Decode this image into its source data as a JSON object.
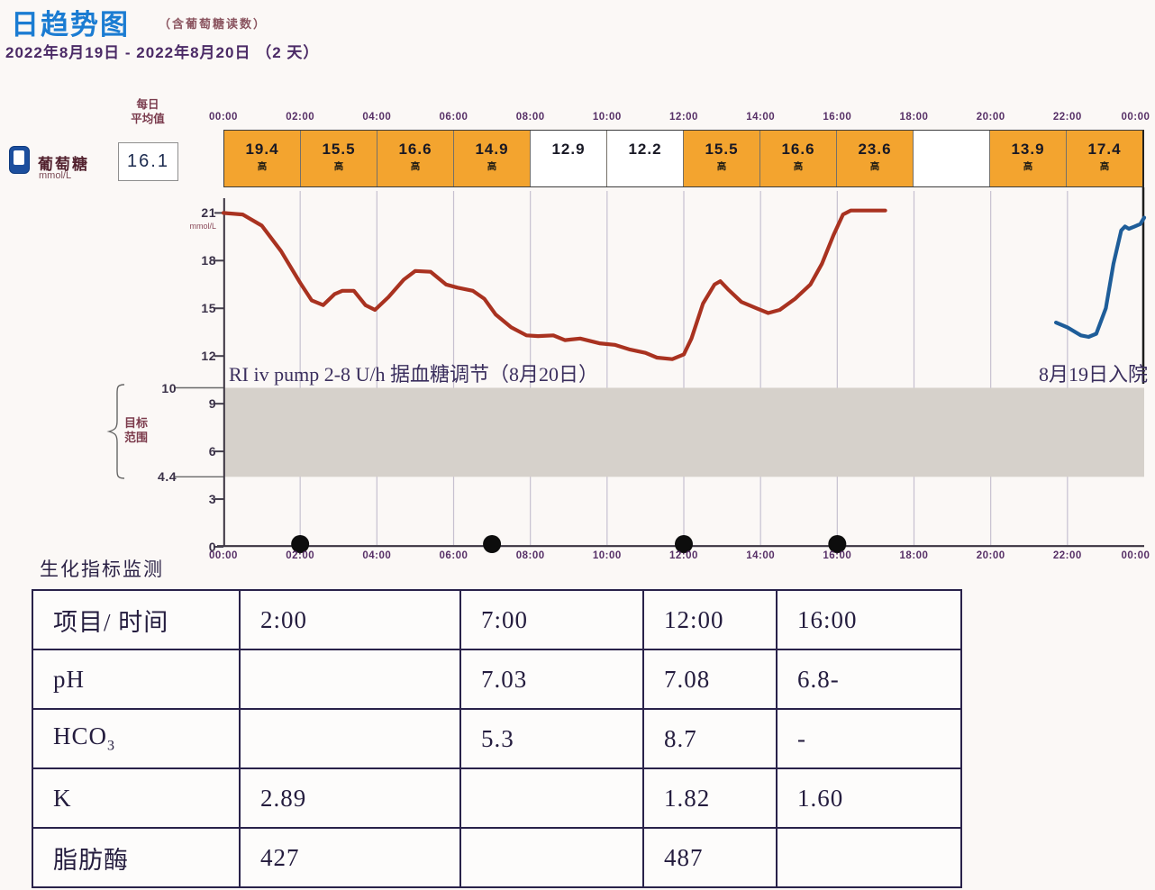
{
  "page": {
    "title": "日趋势图",
    "subtitle": "（含葡萄糖读数）",
    "date_range": "2022年8月19日 - 2022年8月20日 （2 天）"
  },
  "glucose_panel": {
    "label": "葡萄糖",
    "unit": "mmol/L",
    "avg_label_line1": "每日",
    "avg_label_line2": "平均值",
    "avg_value": "16.1"
  },
  "colors": {
    "title_blue": "#1b7cd2",
    "strip_orange": "#f3a42f",
    "series_red": "#a93220",
    "series_blue": "#1e5d99",
    "target_band_gray": "#d6d1cb",
    "gridline": "#c6c0d0",
    "axis": "#3a3340",
    "dot_black": "#0d0d0d"
  },
  "chart_data": {
    "type": "line",
    "title": "日趋势图（含葡萄糖读数）",
    "xlabel": "",
    "ylabel": "mmol/L",
    "x_ticks": [
      "00:00",
      "02:00",
      "04:00",
      "06:00",
      "08:00",
      "10:00",
      "12:00",
      "14:00",
      "16:00",
      "18:00",
      "20:00",
      "22:00",
      "00:00"
    ],
    "y_tick_values": [
      21,
      18,
      15,
      12,
      9,
      6,
      3,
      0
    ],
    "target_range": {
      "low": 4.4,
      "high": 10,
      "label_line1": "目标",
      "label_line2": "范围"
    },
    "ylim": [
      0,
      22.6
    ],
    "xlim_hours": [
      0,
      24
    ],
    "grid": true,
    "daily_average": 16.1,
    "high_marker": "高",
    "bihourly_readings": [
      {
        "value": "19.4",
        "high": true
      },
      {
        "value": "15.5",
        "high": true
      },
      {
        "value": "16.6",
        "high": true
      },
      {
        "value": "14.9",
        "high": true
      },
      {
        "value": "12.9",
        "high": false
      },
      {
        "value": "12.2",
        "high": false
      },
      {
        "value": "15.5",
        "high": true
      },
      {
        "value": "16.6",
        "high": true
      },
      {
        "value": "23.6",
        "high": true
      },
      {
        "value": "",
        "high": false
      },
      {
        "value": "13.9",
        "high": true
      },
      {
        "value": "17.4",
        "high": true
      }
    ],
    "series": [
      {
        "name": "8月20日",
        "color": "#a93220",
        "points": [
          [
            0,
            21
          ],
          [
            0.5,
            20.9
          ],
          [
            1,
            20.2
          ],
          [
            1.5,
            18.6
          ],
          [
            2,
            16.6
          ],
          [
            2.3,
            15.5
          ],
          [
            2.6,
            15.2
          ],
          [
            2.9,
            15.9
          ],
          [
            3.1,
            16.1
          ],
          [
            3.4,
            16.1
          ],
          [
            3.7,
            15.2
          ],
          [
            3.95,
            14.9
          ],
          [
            4.3,
            15.7
          ],
          [
            4.7,
            16.8
          ],
          [
            5,
            17.35
          ],
          [
            5.4,
            17.3
          ],
          [
            5.8,
            16.5
          ],
          [
            6.1,
            16.3
          ],
          [
            6.5,
            16.1
          ],
          [
            6.8,
            15.6
          ],
          [
            7.1,
            14.6
          ],
          [
            7.5,
            13.8
          ],
          [
            7.9,
            13.3
          ],
          [
            8.2,
            13.25
          ],
          [
            8.6,
            13.3
          ],
          [
            8.9,
            13.0
          ],
          [
            9.3,
            13.1
          ],
          [
            9.8,
            12.8
          ],
          [
            10.2,
            12.7
          ],
          [
            10.6,
            12.4
          ],
          [
            11,
            12.2
          ],
          [
            11.3,
            11.9
          ],
          [
            11.7,
            11.8
          ],
          [
            12,
            12.1
          ],
          [
            12.2,
            13.1
          ],
          [
            12.5,
            15.3
          ],
          [
            12.8,
            16.5
          ],
          [
            12.95,
            16.7
          ],
          [
            13.15,
            16.2
          ],
          [
            13.5,
            15.4
          ],
          [
            13.9,
            15.0
          ],
          [
            14.2,
            14.7
          ],
          [
            14.5,
            14.9
          ],
          [
            14.9,
            15.6
          ],
          [
            15.3,
            16.5
          ],
          [
            15.6,
            17.8
          ],
          [
            15.9,
            19.6
          ],
          [
            16.15,
            20.9
          ],
          [
            16.35,
            21.15
          ],
          [
            17.25,
            21.15
          ]
        ]
      },
      {
        "name": "8月19日",
        "color": "#1e5d99",
        "points": [
          [
            21.7,
            14.1
          ],
          [
            22,
            13.8
          ],
          [
            22.35,
            13.3
          ],
          [
            22.55,
            13.2
          ],
          [
            22.75,
            13.4
          ],
          [
            23,
            15.0
          ],
          [
            23.2,
            17.8
          ],
          [
            23.4,
            19.9
          ],
          [
            23.5,
            20.15
          ],
          [
            23.6,
            20.0
          ],
          [
            23.75,
            20.15
          ],
          [
            23.9,
            20.3
          ],
          [
            24,
            20.7
          ]
        ]
      }
    ],
    "event_dot_hours": [
      2,
      7,
      12,
      16
    ],
    "annotations": [
      {
        "text": "RI iv pump 2-8 U/h 据血糖调节（8月20日）",
        "position": "left"
      },
      {
        "text": "8月19日入院",
        "position": "right"
      }
    ]
  },
  "biochem": {
    "section_title": "生化指标监测",
    "table": {
      "header": [
        "项目/ 时间",
        "2:00",
        "7:00",
        "12:00",
        "16:00"
      ],
      "rows": [
        {
          "label": "pH",
          "values": [
            "",
            "7.03",
            "7.08",
            "6.8-"
          ]
        },
        {
          "label": "HCO₃",
          "values": [
            "",
            "5.3",
            "8.7",
            "-"
          ]
        },
        {
          "label": "K",
          "values": [
            "2.89",
            "",
            "1.82",
            "1.60"
          ]
        },
        {
          "label": "脂肪酶",
          "values": [
            "427",
            "",
            "487",
            ""
          ]
        }
      ]
    }
  }
}
